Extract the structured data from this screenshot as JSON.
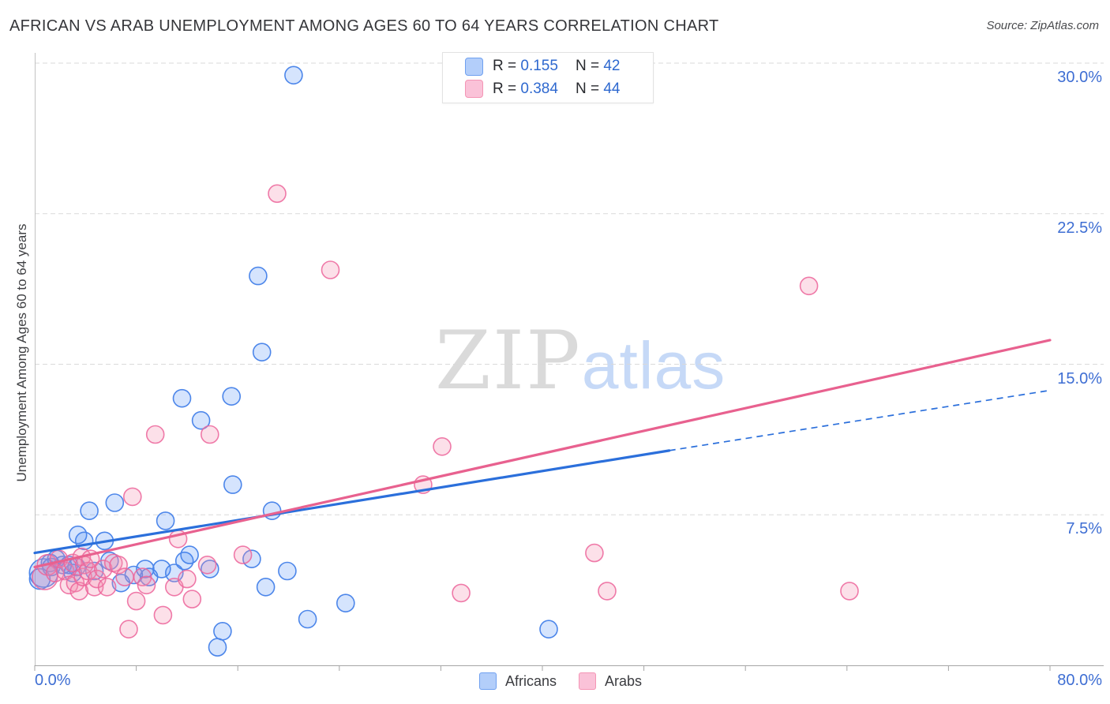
{
  "title": "AFRICAN VS ARAB UNEMPLOYMENT AMONG AGES 60 TO 64 YEARS CORRELATION CHART",
  "source": "Source: ZipAtlas.com",
  "watermark": {
    "zip": "ZIP",
    "atlas": "atlas"
  },
  "legend_box": {
    "rows": [
      {
        "series": "Africans",
        "r_label": "R =",
        "r_value": "0.155",
        "n_label": "N =",
        "n_value": "42"
      },
      {
        "series": "Arabs",
        "r_label": "R =",
        "r_value": "0.384",
        "n_label": "N =",
        "n_value": "44"
      }
    ]
  },
  "axes": {
    "y_label": "Unemployment Among Ages 60 to 64 years",
    "y_ticks": [
      {
        "label": "30.0%",
        "value": 30
      },
      {
        "label": "22.5%",
        "value": 22.5
      },
      {
        "label": "15.0%",
        "value": 15
      },
      {
        "label": "7.5%",
        "value": 7.5
      }
    ],
    "x_ticks": [
      {
        "label": "0.0%",
        "value": 0
      },
      {
        "label": "80.0%",
        "value": 80
      }
    ],
    "x_tick_step": 8
  },
  "bottom_legend": [
    {
      "label": "Africans",
      "color": "#6fa0f0"
    },
    {
      "label": "Arabs",
      "color": "#f495b5"
    }
  ],
  "colors": {
    "african_stroke": "#4c86ea",
    "african_fill": "rgba(66,133,244,0.22)",
    "arab_stroke": "rgba(236,100,154,0.85)",
    "arab_fill": "rgba(244,143,177,0.28)",
    "african_trend": "#2b6fdb",
    "arab_trend": "#e8618f",
    "gridline": "#d9d9d9",
    "axis": "#a6a6a6",
    "tick_label": "#3e6ed3"
  },
  "chart_data": {
    "type": "scatter",
    "title": "African vs Arab Unemployment Among Ages 60 to 64 Years",
    "x_unit": "%",
    "y_unit": "%",
    "x_range": [
      0,
      80
    ],
    "y_range": [
      0,
      30
    ],
    "grid": true,
    "series": [
      {
        "name": "Africans",
        "R": 0.155,
        "N": 42,
        "points": [
          [
            0.4,
            4.3,
            13
          ],
          [
            0.7,
            4.6,
            18
          ],
          [
            1.2,
            5.1
          ],
          [
            1.3,
            4.9
          ],
          [
            1.7,
            5.3
          ],
          [
            2.2,
            5.0
          ],
          [
            2.7,
            5.0
          ],
          [
            3.0,
            4.6
          ],
          [
            3.3,
            4.9
          ],
          [
            3.4,
            6.5
          ],
          [
            3.9,
            6.2
          ],
          [
            4.3,
            7.7
          ],
          [
            4.7,
            4.7
          ],
          [
            5.5,
            6.2
          ],
          [
            5.9,
            5.2
          ],
          [
            6.3,
            8.1
          ],
          [
            6.8,
            4.1
          ],
          [
            7.8,
            4.5
          ],
          [
            8.7,
            4.8
          ],
          [
            9.0,
            4.4
          ],
          [
            10.0,
            4.8
          ],
          [
            10.3,
            7.2
          ],
          [
            11.0,
            4.6
          ],
          [
            11.6,
            13.3
          ],
          [
            11.8,
            5.2
          ],
          [
            12.2,
            5.5
          ],
          [
            13.1,
            12.2
          ],
          [
            13.8,
            4.8
          ],
          [
            14.4,
            0.9
          ],
          [
            14.8,
            1.7
          ],
          [
            15.5,
            13.4
          ],
          [
            15.6,
            9.0
          ],
          [
            17.1,
            5.3
          ],
          [
            17.6,
            19.4
          ],
          [
            17.9,
            15.6
          ],
          [
            18.2,
            3.9
          ],
          [
            18.7,
            7.7
          ],
          [
            19.9,
            4.7
          ],
          [
            20.4,
            29.4
          ],
          [
            21.5,
            2.3
          ],
          [
            24.5,
            3.1
          ],
          [
            40.5,
            1.8
          ]
        ]
      },
      {
        "name": "Arabs",
        "R": 0.384,
        "N": 44,
        "points": [
          [
            0.8,
            4.4,
            16
          ],
          [
            1.0,
            5.0,
            13
          ],
          [
            1.6,
            4.6
          ],
          [
            1.9,
            5.3
          ],
          [
            2.4,
            4.7
          ],
          [
            2.7,
            4.0
          ],
          [
            3.0,
            5.1
          ],
          [
            3.2,
            4.1
          ],
          [
            3.5,
            3.7
          ],
          [
            3.7,
            5.4
          ],
          [
            3.8,
            4.4
          ],
          [
            3.9,
            5.0
          ],
          [
            4.2,
            4.7
          ],
          [
            4.4,
            5.3
          ],
          [
            4.7,
            3.9
          ],
          [
            4.9,
            4.3
          ],
          [
            5.4,
            4.8
          ],
          [
            5.7,
            3.9
          ],
          [
            6.2,
            5.1
          ],
          [
            6.6,
            5.0
          ],
          [
            7.1,
            4.4
          ],
          [
            7.4,
            1.8
          ],
          [
            7.7,
            8.4
          ],
          [
            8.0,
            3.2
          ],
          [
            8.5,
            4.4
          ],
          [
            8.8,
            4.0
          ],
          [
            9.5,
            11.5
          ],
          [
            10.1,
            2.5
          ],
          [
            11.0,
            3.9
          ],
          [
            11.3,
            6.3
          ],
          [
            12.0,
            4.3
          ],
          [
            12.4,
            3.3
          ],
          [
            13.6,
            5.0
          ],
          [
            13.8,
            11.5
          ],
          [
            16.4,
            5.5
          ],
          [
            19.1,
            23.5
          ],
          [
            23.3,
            19.7
          ],
          [
            30.6,
            9.0
          ],
          [
            32.1,
            10.9
          ],
          [
            33.6,
            3.6
          ],
          [
            44.1,
            5.6
          ],
          [
            45.1,
            3.7
          ],
          [
            61.0,
            18.9
          ],
          [
            64.2,
            3.7
          ]
        ]
      }
    ],
    "trend_lines": [
      {
        "series": "Africans",
        "solid": [
          [
            0,
            5.6
          ],
          [
            50,
            10.7
          ]
        ],
        "dashed": [
          [
            50,
            10.7
          ],
          [
            80,
            13.7
          ]
        ]
      },
      {
        "series": "Arabs",
        "solid": [
          [
            0,
            4.9
          ],
          [
            80,
            16.2
          ]
        ]
      }
    ]
  }
}
